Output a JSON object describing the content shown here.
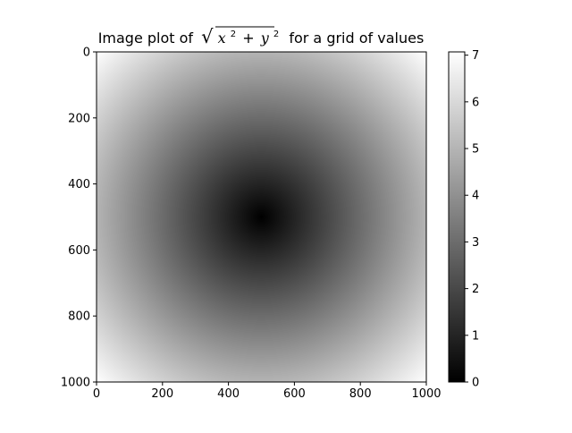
{
  "chart_data": {
    "type": "heatmap",
    "title": {
      "prefix": "Image plot of",
      "expression": "√(x² + y²)",
      "expr_x": "x",
      "expr_plus": "+",
      "expr_y": "y",
      "expr_exp": "2",
      "suffix": "for a grid of values"
    },
    "colormap": "gray",
    "function": "sqrt(x^2 + y^2)",
    "grid": {
      "x_range": [
        -5,
        5
      ],
      "y_range": [
        -5,
        5
      ],
      "points_per_axis": 1000
    },
    "xlim": [
      0,
      1000
    ],
    "ylim": [
      1000,
      0
    ],
    "xticks": [
      0,
      200,
      400,
      600,
      800,
      1000
    ],
    "yticks": [
      0,
      200,
      400,
      600,
      800,
      1000
    ],
    "xtick_labels": [
      "0",
      "200",
      "400",
      "600",
      "800",
      "1000"
    ],
    "ytick_labels": [
      "0",
      "200",
      "400",
      "600",
      "800",
      "1000"
    ],
    "value_range": [
      0,
      7.07
    ],
    "colorbar": {
      "ticks": [
        0,
        1,
        2,
        3,
        4,
        5,
        6,
        7
      ],
      "tick_labels": [
        "0",
        "1",
        "2",
        "3",
        "4",
        "5",
        "6",
        "7"
      ]
    },
    "xlabel": "",
    "ylabel": ""
  }
}
